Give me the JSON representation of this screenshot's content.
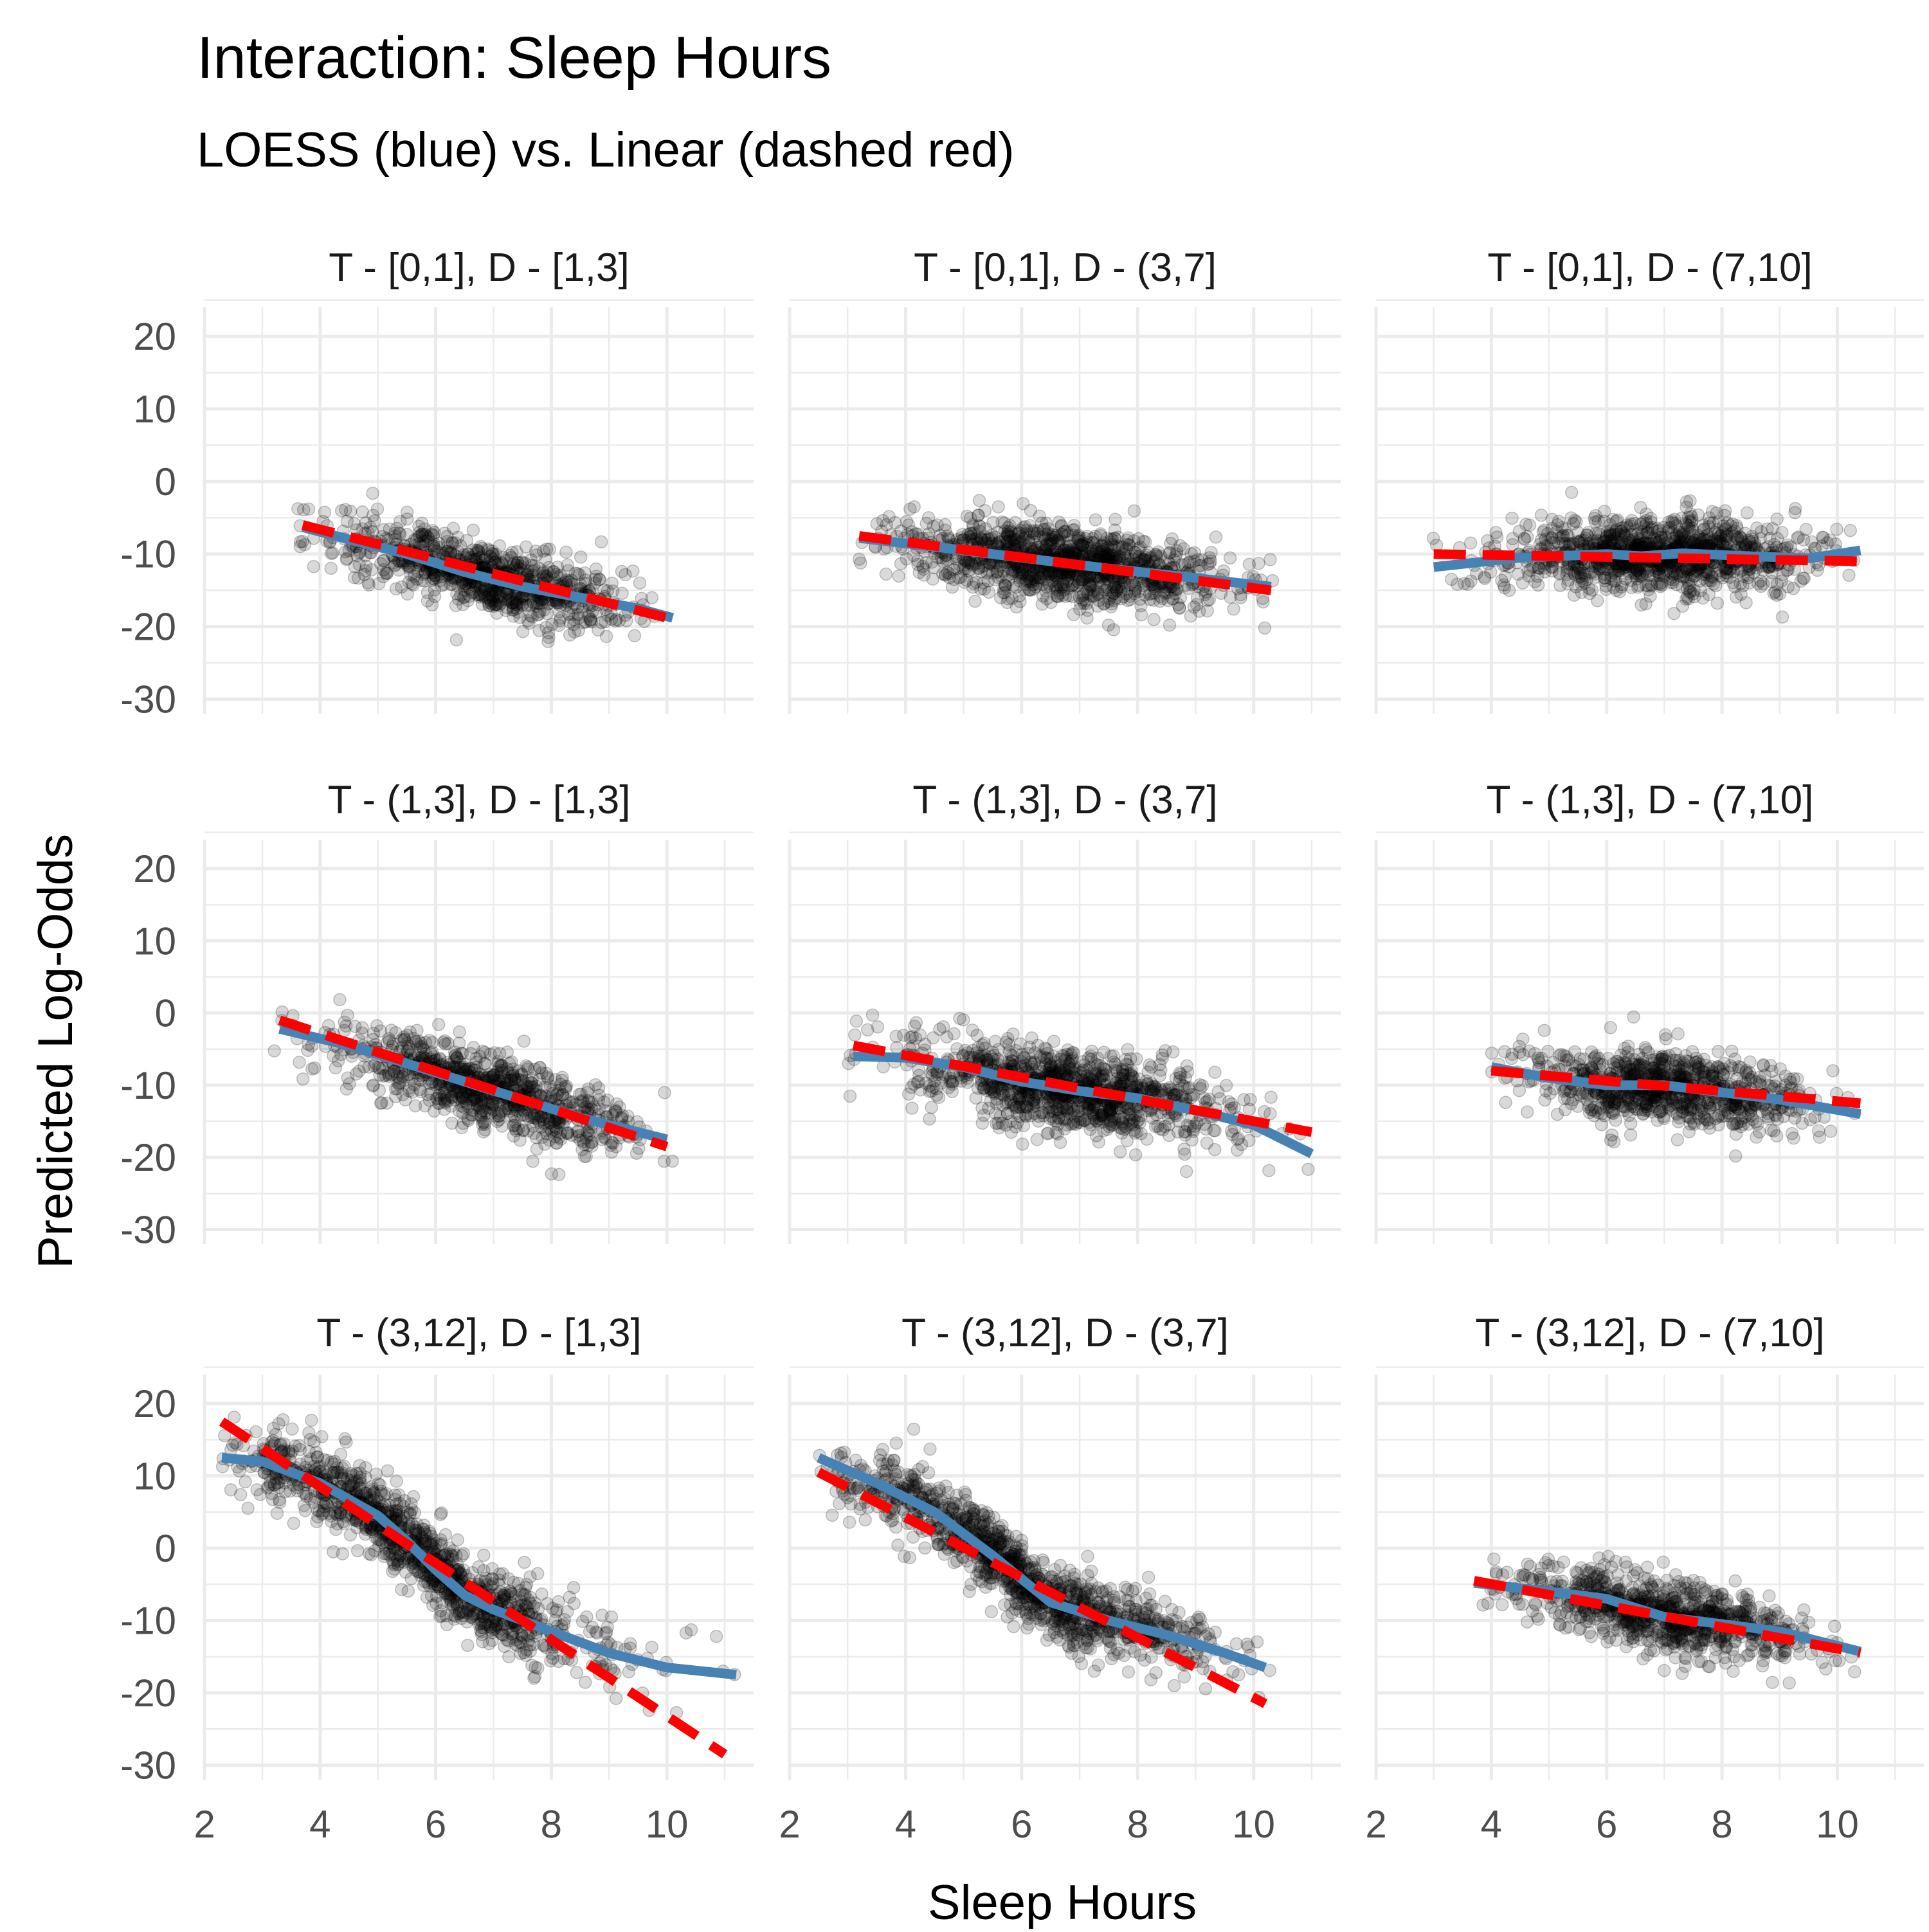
{
  "chart_data": {
    "type": "scatter",
    "title": "Interaction: Sleep Hours",
    "subtitle": "LOESS (blue) vs. Linear (dashed red)",
    "xlabel": "Sleep Hours",
    "ylabel": "Predicted Log-Odds",
    "xlim": [
      2,
      11.5
    ],
    "ylim": [
      -32,
      24
    ],
    "x_ticks": [
      2,
      4,
      6,
      8,
      10
    ],
    "y_ticks": [
      20,
      10,
      0,
      -10,
      -20,
      -30
    ],
    "grid": true,
    "legend": "none",
    "colors": {
      "points": "#000000",
      "loess": "#4682B4",
      "linear": "#FF0000",
      "grid": "#EBEBEB",
      "strip_text": "#1A1A1A",
      "tick_text": "#4D4D4D"
    },
    "series": [
      {
        "name": "LOESS (blue)"
      },
      {
        "name": "Linear (dashed red)"
      }
    ],
    "panels": [
      {
        "label": "T - [0,1], D - [1,3]",
        "linear": [
          [
            3.7,
            -6.0
          ],
          [
            10.1,
            -19.0
          ]
        ],
        "loess": [
          [
            3.7,
            -6.3
          ],
          [
            4.5,
            -8.0
          ],
          [
            5.5,
            -10.0
          ],
          [
            6.5,
            -12.5
          ],
          [
            7.5,
            -14.5
          ],
          [
            8.5,
            -16.0
          ],
          [
            9.5,
            -17.5
          ],
          [
            10.1,
            -18.8
          ]
        ],
        "cloud": {
          "x_mean": 6.8,
          "x_sd": 1.25,
          "x_range": [
            3.4,
            10.2
          ],
          "y_sd": 2.4,
          "n": 900
        }
      },
      {
        "label": "T - [0,1], D - (3,7]",
        "linear": [
          [
            3.2,
            -7.5
          ],
          [
            10.3,
            -15.0
          ]
        ],
        "loess": [
          [
            3.2,
            -7.8
          ],
          [
            4.5,
            -9.0
          ],
          [
            6.0,
            -10.5
          ],
          [
            7.5,
            -12.0
          ],
          [
            9.0,
            -13.3
          ],
          [
            10.3,
            -14.5
          ]
        ],
        "cloud": {
          "x_mean": 6.8,
          "x_sd": 1.35,
          "x_range": [
            3.1,
            10.4
          ],
          "y_sd": 2.6,
          "n": 1200
        }
      },
      {
        "label": "T - [0,1], D - (7,10]",
        "linear": [
          [
            3.0,
            -10.0
          ],
          [
            10.4,
            -11.0
          ]
        ],
        "loess": [
          [
            3.0,
            -11.8
          ],
          [
            4.5,
            -10.5
          ],
          [
            6.0,
            -10.0
          ],
          [
            6.6,
            -10.3
          ],
          [
            7.3,
            -9.9
          ],
          [
            8.5,
            -10.3
          ],
          [
            9.5,
            -10.6
          ],
          [
            10.4,
            -9.5
          ]
        ],
        "cloud": {
          "x_mean": 6.9,
          "x_sd": 1.3,
          "x_range": [
            2.9,
            10.5
          ],
          "y_sd": 2.4,
          "n": 1200
        }
      },
      {
        "label": "T - (1,3], D - [1,3]",
        "linear": [
          [
            3.3,
            -1.0
          ],
          [
            10.0,
            -18.5
          ]
        ],
        "loess": [
          [
            3.3,
            -2.2
          ],
          [
            4.5,
            -4.5
          ],
          [
            5.5,
            -7.0
          ],
          [
            6.5,
            -9.5
          ],
          [
            7.5,
            -12.0
          ],
          [
            8.5,
            -14.5
          ],
          [
            9.5,
            -16.5
          ],
          [
            10.0,
            -17.5
          ]
        ],
        "cloud": {
          "x_mean": 6.8,
          "x_sd": 1.3,
          "x_range": [
            3.2,
            10.1
          ],
          "y_sd": 2.5,
          "n": 900
        }
      },
      {
        "label": "T - (1,3], D - (3,7]",
        "linear": [
          [
            3.1,
            -4.5
          ],
          [
            11.0,
            -16.5
          ]
        ],
        "loess": [
          [
            3.1,
            -6.0
          ],
          [
            4.0,
            -6.2
          ],
          [
            5.0,
            -7.5
          ],
          [
            6.0,
            -9.5
          ],
          [
            7.0,
            -10.8
          ],
          [
            8.0,
            -11.8
          ],
          [
            9.0,
            -13.5
          ],
          [
            10.0,
            -15.5
          ],
          [
            11.0,
            -19.5
          ]
        ],
        "cloud": {
          "x_mean": 6.8,
          "x_sd": 1.35,
          "x_range": [
            3.0,
            11.0
          ],
          "y_sd": 2.7,
          "n": 1100
        }
      },
      {
        "label": "T - (1,3], D - (7,10]",
        "linear": [
          [
            4.0,
            -8.0
          ],
          [
            10.4,
            -12.5
          ]
        ],
        "loess": [
          [
            4.0,
            -7.5
          ],
          [
            5.0,
            -9.0
          ],
          [
            6.0,
            -10.0
          ],
          [
            7.0,
            -10.0
          ],
          [
            8.0,
            -11.0
          ],
          [
            9.0,
            -12.0
          ],
          [
            10.4,
            -14.0
          ]
        ],
        "cloud": {
          "x_mean": 7.0,
          "x_sd": 1.25,
          "x_range": [
            4.0,
            10.4
          ],
          "y_sd": 2.5,
          "n": 900
        }
      },
      {
        "label": "T - (3,12], D - [1,3]",
        "linear": [
          [
            2.3,
            17.5
          ],
          [
            11.0,
            -28.5
          ]
        ],
        "loess": [
          [
            2.3,
            12.5
          ],
          [
            3.0,
            12.0
          ],
          [
            4.0,
            9.0
          ],
          [
            5.0,
            4.5
          ],
          [
            5.5,
            1.0
          ],
          [
            6.0,
            -3.0
          ],
          [
            6.5,
            -6.5
          ],
          [
            7.0,
            -8.5
          ],
          [
            8.0,
            -11.5
          ],
          [
            9.0,
            -14.5
          ],
          [
            10.0,
            -16.5
          ],
          [
            11.2,
            -17.5
          ]
        ],
        "cloud": {
          "x_mean": 5.8,
          "x_sd": 1.6,
          "x_range": [
            2.3,
            11.3
          ],
          "y_sd": 2.6,
          "n": 1200
        }
      },
      {
        "label": "T - (3,12], D - (3,7]",
        "linear": [
          [
            2.5,
            10.5
          ],
          [
            10.2,
            -21.5
          ]
        ],
        "loess": [
          [
            2.5,
            12.5
          ],
          [
            3.5,
            9.0
          ],
          [
            4.5,
            5.0
          ],
          [
            5.5,
            -1.0
          ],
          [
            6.5,
            -7.5
          ],
          [
            7.5,
            -10.0
          ],
          [
            8.5,
            -12.0
          ],
          [
            9.5,
            -14.5
          ],
          [
            10.2,
            -16.5
          ]
        ],
        "cloud": {
          "x_mean": 6.0,
          "x_sd": 1.6,
          "x_range": [
            2.5,
            10.3
          ],
          "y_sd": 2.6,
          "n": 1200
        }
      },
      {
        "label": "T - (3,12], D - (7,10]",
        "linear": [
          [
            3.7,
            -4.5
          ],
          [
            10.4,
            -14.5
          ]
        ],
        "loess": [
          [
            3.7,
            -4.8
          ],
          [
            5.0,
            -6.0
          ],
          [
            6.0,
            -7.0
          ],
          [
            7.0,
            -9.5
          ],
          [
            8.0,
            -10.5
          ],
          [
            9.0,
            -11.5
          ],
          [
            10.4,
            -14.3
          ]
        ],
        "cloud": {
          "x_mean": 7.0,
          "x_sd": 1.25,
          "x_range": [
            3.6,
            10.4
          ],
          "y_sd": 2.4,
          "n": 900
        }
      }
    ]
  }
}
